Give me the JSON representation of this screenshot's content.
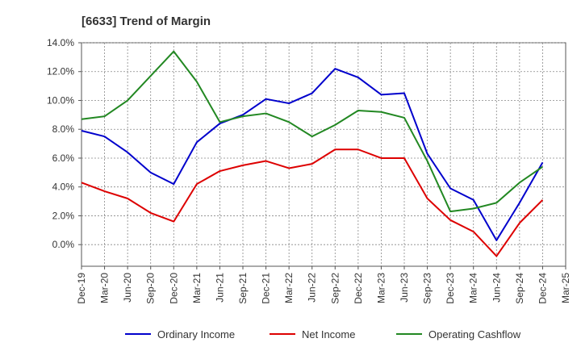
{
  "chart_data": {
    "type": "line",
    "title": "[6633]  Trend of Margin",
    "xlabel": "",
    "ylabel": "",
    "x": [
      "Dec-19",
      "Mar-20",
      "Jun-20",
      "Sep-20",
      "Dec-20",
      "Mar-21",
      "Jun-21",
      "Sep-21",
      "Dec-21",
      "Mar-22",
      "Jun-22",
      "Sep-22",
      "Dec-22",
      "Mar-23",
      "Jun-23",
      "Sep-23",
      "Dec-23",
      "Mar-24",
      "Jun-24",
      "Sep-24",
      "Dec-24",
      "Mar-25"
    ],
    "x_ticks": [
      "Dec-19",
      "Mar-20",
      "Jun-20",
      "Sep-20",
      "Dec-20",
      "Mar-21",
      "Jun-21",
      "Sep-21",
      "Dec-21",
      "Mar-22",
      "Jun-22",
      "Sep-22",
      "Dec-22",
      "Mar-23",
      "Jun-23",
      "Sep-23",
      "Dec-23",
      "Mar-24",
      "Jun-24",
      "Sep-24",
      "Dec-24",
      "Mar-25"
    ],
    "y_ticks": [
      "14.0%",
      "12.0%",
      "10.0%",
      "8.0%",
      "6.0%",
      "4.0%",
      "2.0%",
      "0.0%"
    ],
    "y_tick_values": [
      14,
      12,
      10,
      8,
      6,
      4,
      2,
      0
    ],
    "ylim": [
      -1.5,
      14
    ],
    "grid": true,
    "legend_position": "bottom",
    "series": [
      {
        "name": "Ordinary Income",
        "color": "#0000cc",
        "values": [
          7.9,
          7.5,
          6.4,
          5.0,
          4.2,
          7.1,
          8.4,
          9.0,
          10.1,
          9.8,
          10.5,
          12.2,
          11.6,
          10.4,
          10.5,
          6.3,
          3.9,
          3.1,
          0.3,
          2.9,
          5.7,
          null
        ]
      },
      {
        "name": "Net Income",
        "color": "#dd0000",
        "values": [
          4.3,
          3.7,
          3.2,
          2.2,
          1.6,
          4.2,
          5.1,
          5.5,
          5.8,
          5.3,
          5.6,
          6.6,
          6.6,
          6.0,
          6.0,
          3.2,
          1.7,
          0.9,
          -0.8,
          1.5,
          3.1,
          null
        ]
      },
      {
        "name": "Operating Cashflow",
        "color": "#228822",
        "values": [
          8.7,
          8.9,
          10.0,
          11.7,
          13.4,
          11.3,
          8.5,
          8.9,
          9.1,
          8.5,
          7.5,
          8.3,
          9.3,
          9.2,
          8.8,
          5.8,
          2.3,
          2.5,
          2.9,
          4.3,
          5.4,
          null
        ]
      }
    ]
  }
}
